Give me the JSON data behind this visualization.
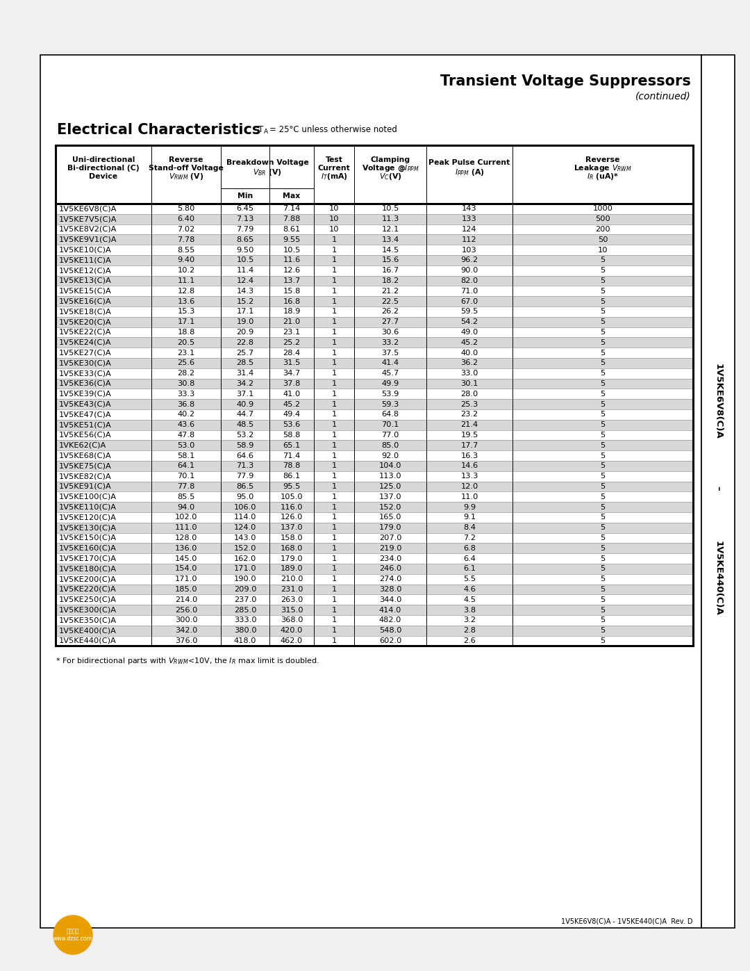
{
  "title": "Transient Voltage Suppressors",
  "subtitle": "(continued)",
  "section_title": "Electrical Characteristics",
  "temp_note": "= 25°C unless otherwise noted",
  "footer_text": "1V5KE6V8(C)A - 1V5KE440(C)A  Rev. D",
  "rows": [
    [
      "1V5KE6V8(C)A",
      "5.80",
      "6.45",
      "7.14",
      "10",
      "10.5",
      "143",
      "1000"
    ],
    [
      "1V5KE7V5(C)A",
      "6.40",
      "7.13",
      "7.88",
      "10",
      "11.3",
      "133",
      "500"
    ],
    [
      "1V5KE8V2(C)A",
      "7.02",
      "7.79",
      "8.61",
      "10",
      "12.1",
      "124",
      "200"
    ],
    [
      "1V5KE9V1(C)A",
      "7.78",
      "8.65",
      "9.55",
      "1",
      "13.4",
      "112",
      "50"
    ],
    [
      "1V5KE10(C)A",
      "8.55",
      "9.50",
      "10.5",
      "1",
      "14.5",
      "103",
      "10"
    ],
    [
      "1V5KE11(C)A",
      "9.40",
      "10.5",
      "11.6",
      "1",
      "15.6",
      "96.2",
      "5"
    ],
    [
      "1V5KE12(C)A",
      "10.2",
      "11.4",
      "12.6",
      "1",
      "16.7",
      "90.0",
      "5"
    ],
    [
      "1V5KE13(C)A",
      "11.1",
      "12.4",
      "13.7",
      "1",
      "18.2",
      "82.0",
      "5"
    ],
    [
      "1V5KE15(C)A",
      "12.8",
      "14.3",
      "15.8",
      "1",
      "21.2",
      "71.0",
      "5"
    ],
    [
      "1V5KE16(C)A",
      "13.6",
      "15.2",
      "16.8",
      "1",
      "22.5",
      "67.0",
      "5"
    ],
    [
      "1V5KE18(C)A",
      "15.3",
      "17.1",
      "18.9",
      "1",
      "26.2",
      "59.5",
      "5"
    ],
    [
      "1V5KE20(C)A",
      "17.1",
      "19.0",
      "21.0",
      "1",
      "27.7",
      "54.2",
      "5"
    ],
    [
      "1V5KE22(C)A",
      "18.8",
      "20.9",
      "23.1",
      "1",
      "30.6",
      "49.0",
      "5"
    ],
    [
      "1V5KE24(C)A",
      "20.5",
      "22.8",
      "25.2",
      "1",
      "33.2",
      "45.2",
      "5"
    ],
    [
      "1V5KE27(C)A",
      "23.1",
      "25.7",
      "28.4",
      "1",
      "37.5",
      "40.0",
      "5"
    ],
    [
      "1V5KE30(C)A",
      "25.6",
      "28.5",
      "31.5",
      "1",
      "41.4",
      "36.2",
      "5"
    ],
    [
      "1V5KE33(C)A",
      "28.2",
      "31.4",
      "34.7",
      "1",
      "45.7",
      "33.0",
      "5"
    ],
    [
      "1V5KE36(C)A",
      "30.8",
      "34.2",
      "37.8",
      "1",
      "49.9",
      "30.1",
      "5"
    ],
    [
      "1V5KE39(C)A",
      "33.3",
      "37.1",
      "41.0",
      "1",
      "53.9",
      "28.0",
      "5"
    ],
    [
      "1V5KE43(C)A",
      "36.8",
      "40.9",
      "45.2",
      "1",
      "59.3",
      "25.3",
      "5"
    ],
    [
      "1V5KE47(C)A",
      "40.2",
      "44.7",
      "49.4",
      "1",
      "64.8",
      "23.2",
      "5"
    ],
    [
      "1V5KE51(C)A",
      "43.6",
      "48.5",
      "53.6",
      "1",
      "70.1",
      "21.4",
      "5"
    ],
    [
      "1V5KE56(C)A",
      "47.8",
      "53.2",
      "58.8",
      "1",
      "77.0",
      "19.5",
      "5"
    ],
    [
      "1VKE62(C)A",
      "53.0",
      "58.9",
      "65.1",
      "1",
      "85.0",
      "17.7",
      "5"
    ],
    [
      "1V5KE68(C)A",
      "58.1",
      "64.6",
      "71.4",
      "1",
      "92.0",
      "16.3",
      "5"
    ],
    [
      "1V5KE75(C)A",
      "64.1",
      "71.3",
      "78.8",
      "1",
      "104.0",
      "14.6",
      "5"
    ],
    [
      "1V5KE82(C)A",
      "70.1",
      "77.9",
      "86.1",
      "1",
      "113.0",
      "13.3",
      "5"
    ],
    [
      "1V5KE91(C)A",
      "77.8",
      "86.5",
      "95.5",
      "1",
      "125.0",
      "12.0",
      "5"
    ],
    [
      "1V5KE100(C)A",
      "85.5",
      "95.0",
      "105.0",
      "1",
      "137.0",
      "11.0",
      "5"
    ],
    [
      "1V5KE110(C)A",
      "94.0",
      "106.0",
      "116.0",
      "1",
      "152.0",
      "9.9",
      "5"
    ],
    [
      "1V5KE120(C)A",
      "102.0",
      "114.0",
      "126.0",
      "1",
      "165.0",
      "9.1",
      "5"
    ],
    [
      "1V5KE130(C)A",
      "111.0",
      "124.0",
      "137.0",
      "1",
      "179.0",
      "8.4",
      "5"
    ],
    [
      "1V5KE150(C)A",
      "128.0",
      "143.0",
      "158.0",
      "1",
      "207.0",
      "7.2",
      "5"
    ],
    [
      "1V5KE160(C)A",
      "136.0",
      "152.0",
      "168.0",
      "1",
      "219.0",
      "6.8",
      "5"
    ],
    [
      "1V5KE170(C)A",
      "145.0",
      "162.0",
      "179.0",
      "1",
      "234.0",
      "6.4",
      "5"
    ],
    [
      "1V5KE180(C)A",
      "154.0",
      "171.0",
      "189.0",
      "1",
      "246.0",
      "6.1",
      "5"
    ],
    [
      "1V5KE200(C)A",
      "171.0",
      "190.0",
      "210.0",
      "1",
      "274.0",
      "5.5",
      "5"
    ],
    [
      "1V5KE220(C)A",
      "185.0",
      "209.0",
      "231.0",
      "1",
      "328.0",
      "4.6",
      "5"
    ],
    [
      "1V5KE250(C)A",
      "214.0",
      "237.0",
      "263.0",
      "1",
      "344.0",
      "4.5",
      "5"
    ],
    [
      "1V5KE300(C)A",
      "256.0",
      "285.0",
      "315.0",
      "1",
      "414.0",
      "3.8",
      "5"
    ],
    [
      "1V5KE350(C)A",
      "300.0",
      "333.0",
      "368.0",
      "1",
      "482.0",
      "3.2",
      "5"
    ],
    [
      "1V5KE400(C)A",
      "342.0",
      "380.0",
      "420.0",
      "1",
      "548.0",
      "2.8",
      "5"
    ],
    [
      "1V5KE440(C)A",
      "376.0",
      "418.0",
      "462.0",
      "1",
      "602.0",
      "2.6",
      "5"
    ]
  ],
  "bg_color": "#ffffff",
  "row_alt_colors": [
    "#ffffff",
    "#d8d8d8"
  ],
  "page_bg": "#f0f0f0"
}
